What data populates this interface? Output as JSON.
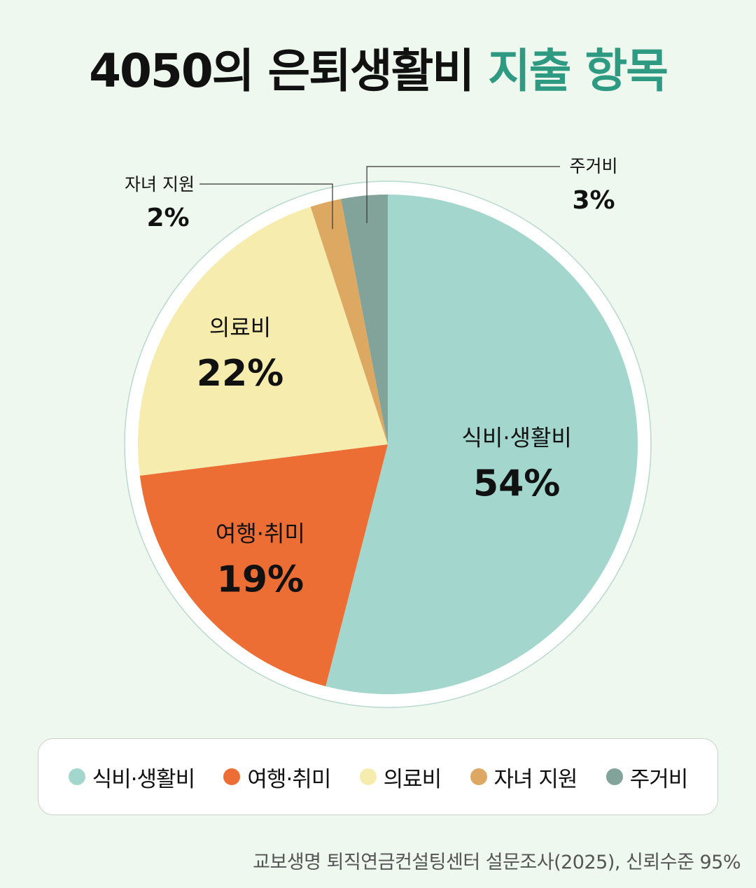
{
  "title": {
    "main": "4050의 은퇴생활비",
    "accent": "지출 항목"
  },
  "chart_data": {
    "type": "pie",
    "unit": "%",
    "slices": [
      {
        "label": "식비·생활비",
        "value": 54,
        "display": "54%",
        "color": "#a3d7cd"
      },
      {
        "label": "여행·취미",
        "value": 19,
        "display": "19%",
        "color": "#ec6e34"
      },
      {
        "label": "의료비",
        "value": 22,
        "display": "22%",
        "color": "#f5ecad"
      },
      {
        "label": "자녀 지원",
        "value": 2,
        "display": "2%",
        "color": "#dca862"
      },
      {
        "label": "주거비",
        "value": 3,
        "display": "3%",
        "color": "#82a39a"
      }
    ],
    "legend_position": "bottom"
  },
  "source": "교보생명 퇴직연금컨설팅센터 설문조사(2025), 신뢰수준 95%"
}
